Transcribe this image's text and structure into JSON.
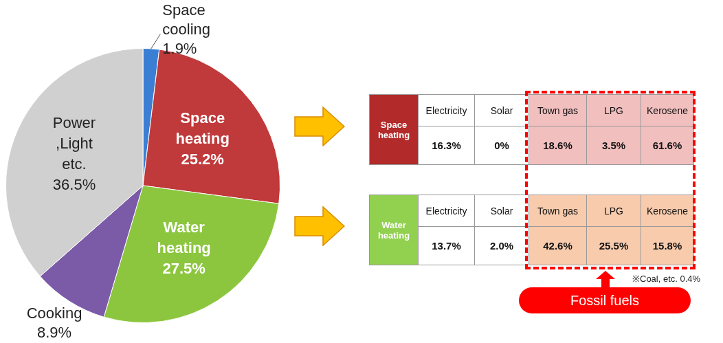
{
  "chart_data": [
    {
      "type": "pie",
      "categories": [
        "Space cooling",
        "Space heating",
        "Water heating",
        "Cooking",
        "Power ,Light etc."
      ],
      "values": [
        1.9,
        25.2,
        27.5,
        8.9,
        36.5
      ],
      "value_labels": [
        "1.9%",
        "25.2%",
        "27.5%",
        "8.9%",
        "36.5%"
      ],
      "colors": [
        "#3b7fd4",
        "#c0393b",
        "#8cc63f",
        "#7b5ba8",
        "#d0d0d0"
      ]
    },
    {
      "type": "other",
      "title": "Space heating",
      "color": "#b22a2a",
      "categories": [
        "Electricity",
        "Solar",
        "Town gas",
        "LPG",
        "Kerosene"
      ],
      "values": [
        16.3,
        0,
        18.6,
        3.5,
        61.6
      ],
      "value_labels": [
        "16.3%",
        "0%",
        "18.6%",
        "3.5%",
        "61.6%"
      ],
      "colors": [
        "#ffffff",
        "#ffffff",
        "#f2bfbf",
        "#f2bfbf",
        "#f2bfbf"
      ]
    },
    {
      "type": "other",
      "title": "Water heating",
      "color": "#92d050",
      "categories": [
        "Electricity",
        "Solar",
        "Town gas",
        "LPG",
        "Kerosene"
      ],
      "values": [
        13.7,
        2.0,
        42.6,
        25.5,
        15.8
      ],
      "value_labels": [
        "13.7%",
        "2.0%",
        "42.6%",
        "25.5%",
        "15.8%"
      ],
      "colors": [
        "#ffffff",
        "#ffffff",
        "#f8cbad",
        "#f8cbad",
        "#f8cbad"
      ],
      "annotations": [
        "※Coal, etc. 0.4%",
        "Fossil fuels"
      ]
    }
  ]
}
